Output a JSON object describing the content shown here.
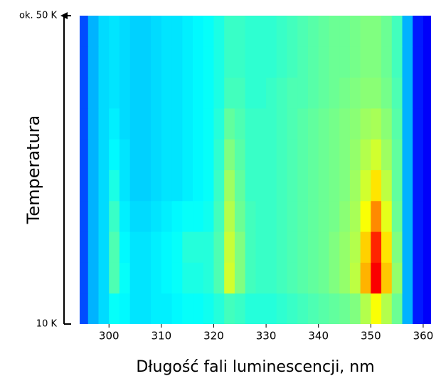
{
  "chart_data": {
    "type": "heatmap",
    "colormap": "jet",
    "xlabel": "Długość fali luminescencji,  nm",
    "ylabel": "Temperatura",
    "xlim": [
      294.4,
      361.5
    ],
    "xticks": [
      300,
      310,
      320,
      330,
      340,
      350,
      360
    ],
    "ylim": [
      10,
      50
    ],
    "yticks": [
      {
        "value": 10,
        "label": "10 K"
      },
      {
        "value": 50,
        "label": "ok. 50 K"
      }
    ],
    "x": [
      295,
      297,
      299,
      301,
      303,
      305,
      307,
      309,
      311,
      313,
      315,
      317,
      319,
      321,
      323,
      325,
      327,
      329,
      331,
      333,
      335,
      337,
      339,
      341,
      343,
      345,
      347,
      349,
      351,
      353,
      355,
      357,
      359,
      361
    ],
    "y": [
      12,
      16,
      20,
      24,
      28,
      32,
      36,
      40,
      44,
      48
    ],
    "z": [
      [
        0.2,
        0.3,
        0.34,
        0.38,
        0.37,
        0.35,
        0.35,
        0.36,
        0.36,
        0.37,
        0.38,
        0.38,
        0.39,
        0.41,
        0.44,
        0.43,
        0.41,
        0.41,
        0.41,
        0.42,
        0.43,
        0.44,
        0.45,
        0.46,
        0.47,
        0.48,
        0.5,
        0.55,
        0.62,
        0.55,
        0.48,
        0.3,
        0.15,
        0.12
      ],
      [
        0.2,
        0.3,
        0.34,
        0.45,
        0.38,
        0.35,
        0.35,
        0.36,
        0.37,
        0.38,
        0.4,
        0.4,
        0.41,
        0.45,
        0.58,
        0.5,
        0.44,
        0.43,
        0.43,
        0.44,
        0.45,
        0.46,
        0.47,
        0.48,
        0.5,
        0.52,
        0.56,
        0.7,
        0.88,
        0.68,
        0.52,
        0.3,
        0.15,
        0.12
      ],
      [
        0.2,
        0.3,
        0.34,
        0.45,
        0.37,
        0.35,
        0.35,
        0.36,
        0.37,
        0.38,
        0.41,
        0.41,
        0.41,
        0.45,
        0.57,
        0.5,
        0.44,
        0.43,
        0.43,
        0.44,
        0.45,
        0.46,
        0.47,
        0.48,
        0.5,
        0.52,
        0.55,
        0.67,
        0.84,
        0.65,
        0.5,
        0.3,
        0.15,
        0.12
      ],
      [
        0.2,
        0.3,
        0.34,
        0.43,
        0.36,
        0.34,
        0.34,
        0.35,
        0.36,
        0.37,
        0.38,
        0.38,
        0.39,
        0.44,
        0.55,
        0.48,
        0.44,
        0.43,
        0.43,
        0.44,
        0.45,
        0.46,
        0.47,
        0.48,
        0.49,
        0.51,
        0.54,
        0.62,
        0.74,
        0.6,
        0.48,
        0.3,
        0.15,
        0.12
      ],
      [
        0.2,
        0.3,
        0.34,
        0.4,
        0.35,
        0.33,
        0.33,
        0.34,
        0.35,
        0.35,
        0.36,
        0.37,
        0.38,
        0.43,
        0.53,
        0.47,
        0.43,
        0.43,
        0.43,
        0.44,
        0.45,
        0.46,
        0.47,
        0.48,
        0.49,
        0.5,
        0.53,
        0.58,
        0.65,
        0.56,
        0.47,
        0.3,
        0.15,
        0.12
      ],
      [
        0.2,
        0.3,
        0.34,
        0.37,
        0.35,
        0.33,
        0.33,
        0.34,
        0.35,
        0.35,
        0.36,
        0.37,
        0.38,
        0.42,
        0.5,
        0.46,
        0.43,
        0.43,
        0.43,
        0.44,
        0.45,
        0.46,
        0.47,
        0.48,
        0.49,
        0.5,
        0.52,
        0.55,
        0.58,
        0.53,
        0.47,
        0.3,
        0.15,
        0.12
      ],
      [
        0.2,
        0.3,
        0.34,
        0.36,
        0.34,
        0.33,
        0.33,
        0.34,
        0.35,
        0.35,
        0.36,
        0.37,
        0.38,
        0.41,
        0.47,
        0.45,
        0.43,
        0.43,
        0.43,
        0.44,
        0.45,
        0.46,
        0.47,
        0.48,
        0.49,
        0.5,
        0.51,
        0.53,
        0.54,
        0.51,
        0.46,
        0.3,
        0.15,
        0.12
      ],
      [
        0.2,
        0.3,
        0.34,
        0.35,
        0.34,
        0.33,
        0.33,
        0.34,
        0.35,
        0.35,
        0.36,
        0.37,
        0.38,
        0.4,
        0.44,
        0.44,
        0.42,
        0.42,
        0.43,
        0.44,
        0.45,
        0.45,
        0.46,
        0.47,
        0.48,
        0.49,
        0.5,
        0.51,
        0.51,
        0.49,
        0.45,
        0.3,
        0.15,
        0.12
      ],
      [
        0.2,
        0.3,
        0.34,
        0.35,
        0.34,
        0.33,
        0.33,
        0.34,
        0.35,
        0.35,
        0.36,
        0.37,
        0.38,
        0.4,
        0.43,
        0.43,
        0.42,
        0.42,
        0.42,
        0.43,
        0.44,
        0.45,
        0.46,
        0.47,
        0.48,
        0.48,
        0.49,
        0.5,
        0.5,
        0.48,
        0.44,
        0.3,
        0.15,
        0.12
      ],
      [
        0.2,
        0.3,
        0.34,
        0.35,
        0.34,
        0.33,
        0.33,
        0.34,
        0.35,
        0.35,
        0.36,
        0.37,
        0.38,
        0.4,
        0.43,
        0.43,
        0.42,
        0.42,
        0.42,
        0.43,
        0.44,
        0.45,
        0.46,
        0.47,
        0.48,
        0.48,
        0.49,
        0.5,
        0.5,
        0.48,
        0.44,
        0.3,
        0.15,
        0.12
      ]
    ]
  }
}
